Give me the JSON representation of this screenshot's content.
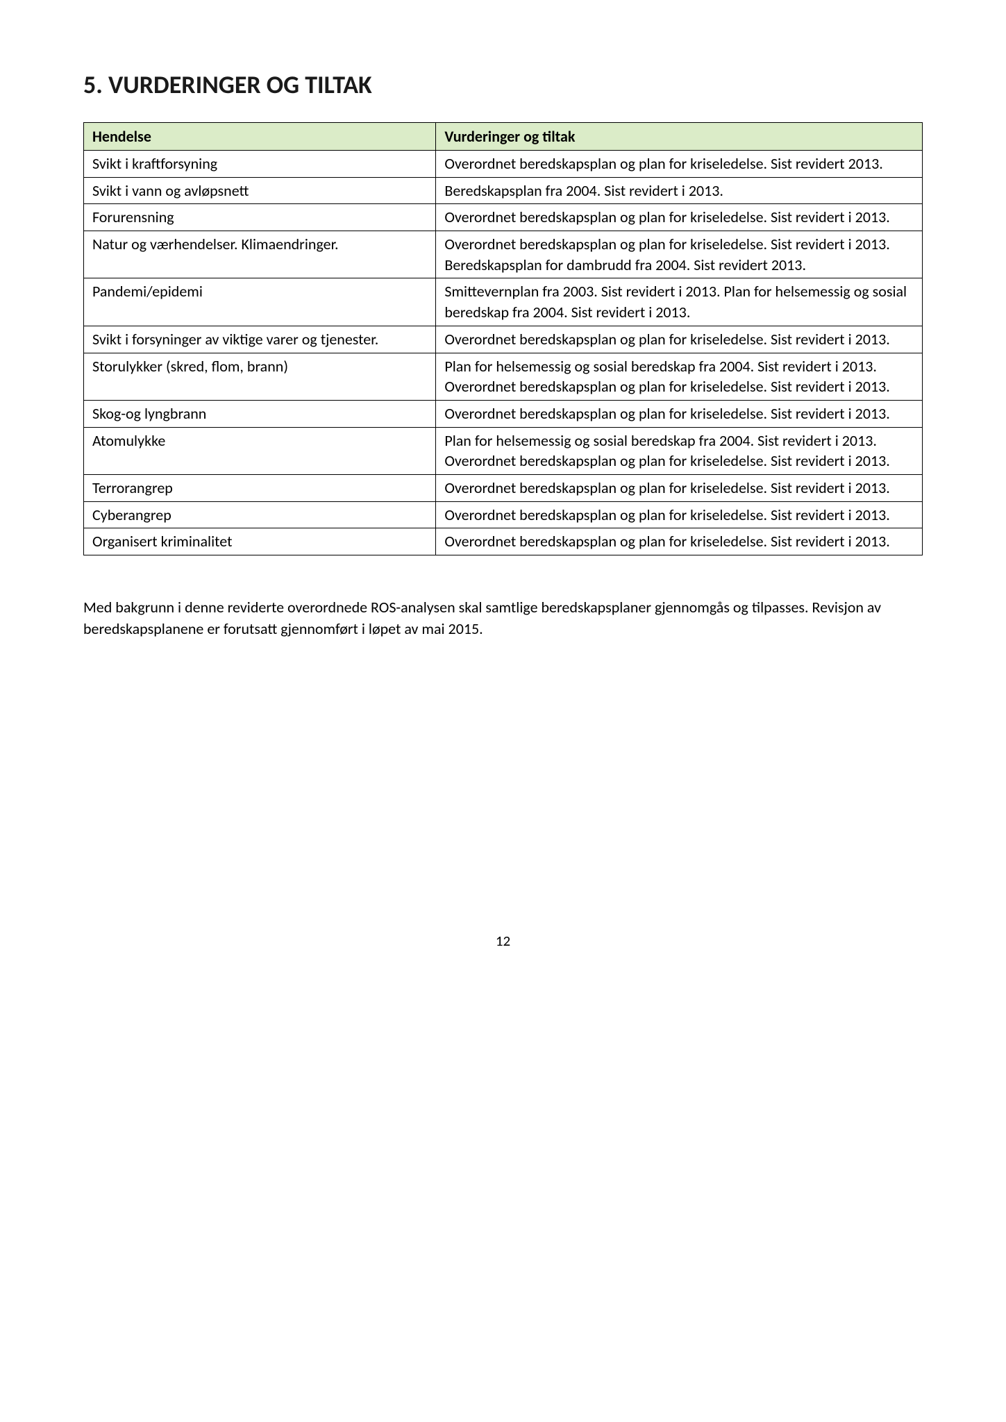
{
  "title": "5. VURDERINGER OG TILTAK",
  "table": {
    "columns": {
      "hendelse": "Hendelse",
      "vurderinger": "Vurderinger og tiltak"
    },
    "header_bg": "#dbecc8",
    "border_color": "#000000",
    "font_size_pt": 16,
    "rows": [
      {
        "hendelse": "Svikt i kraftforsyning",
        "vurderinger": "Overordnet beredskapsplan og plan for kriseledelse. Sist revidert 2013."
      },
      {
        "hendelse": "Svikt i vann og avløpsnett",
        "vurderinger": "Beredskapsplan fra 2004. Sist revidert i 2013."
      },
      {
        "hendelse": "Forurensning",
        "vurderinger": "Overordnet beredskapsplan og plan for kriseledelse. Sist revidert i 2013."
      },
      {
        "hendelse": "Natur og værhendelser. Klimaendringer.",
        "vurderinger": "Overordnet beredskapsplan og plan for kriseledelse. Sist revidert i 2013. Beredskapsplan for dambrudd fra 2004. Sist revidert 2013."
      },
      {
        "hendelse": "Pandemi/epidemi",
        "vurderinger": "Smittevernplan fra 2003. Sist revidert i 2013. Plan for helsemessig og sosial beredskap fra 2004. Sist revidert i 2013."
      },
      {
        "hendelse": "Svikt i forsyninger av viktige varer og tjenester.",
        "vurderinger": "Overordnet beredskapsplan og plan for kriseledelse. Sist revidert i 2013."
      },
      {
        "hendelse": "Storulykker (skred, flom, brann)",
        "vurderinger": "Plan for helsemessig og sosial beredskap fra 2004. Sist revidert i 2013. Overordnet beredskapsplan og plan for kriseledelse. Sist revidert i 2013."
      },
      {
        "hendelse": "Skog-og lyngbrann",
        "vurderinger": "Overordnet beredskapsplan og plan for kriseledelse. Sist revidert i 2013."
      },
      {
        "hendelse": "Atomulykke",
        "vurderinger": "Plan for helsemessig og sosial beredskap fra 2004. Sist revidert i 2013. Overordnet beredskapsplan og plan for kriseledelse. Sist revidert i 2013."
      },
      {
        "hendelse": "Terrorangrep",
        "vurderinger": "Overordnet beredskapsplan og plan for kriseledelse. Sist revidert i 2013."
      },
      {
        "hendelse": "Cyberangrep",
        "vurderinger": "Overordnet beredskapsplan og plan for kriseledelse. Sist revidert i 2013."
      },
      {
        "hendelse": "Organisert kriminalitet",
        "vurderinger": "Overordnet beredskapsplan og plan for kriseledelse. Sist revidert i 2013."
      }
    ]
  },
  "paragraph": "Med bakgrunn i denne reviderte overordnede ROS-analysen skal samtlige beredskapsplaner gjennomgås og tilpasses. Revisjon av beredskapsplanene er forutsatt gjennomført i løpet av mai 2015.",
  "page_number": "12"
}
